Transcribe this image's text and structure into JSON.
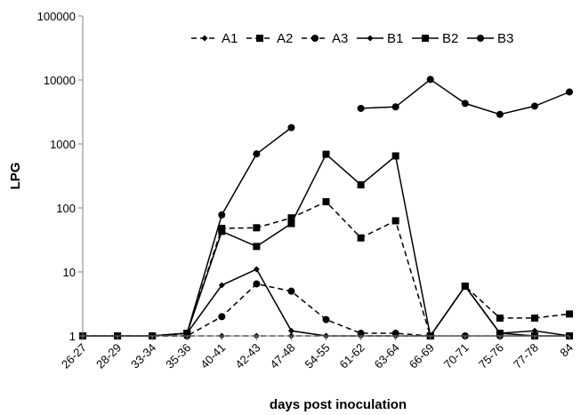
{
  "chart_data": {
    "type": "line",
    "title": "",
    "xlabel": "days post inoculation",
    "ylabel": "LPG",
    "yscale": "log",
    "ylim": [
      1,
      100000
    ],
    "y_ticks": [
      "1",
      "10",
      "100",
      "1000",
      "10000",
      "100000"
    ],
    "grid": false,
    "legend_position": "top",
    "categories": [
      "26-27",
      "28-29",
      "33-34",
      "35-36",
      "40-41",
      "42-43",
      "47-48",
      "54-55",
      "61-62",
      "63-64",
      "66-69",
      "70-71",
      "75-76",
      "77-78",
      "84"
    ],
    "series": [
      {
        "name": "A1",
        "line": "dashed",
        "marker": "diamond",
        "values": [
          1,
          1,
          1,
          1,
          1,
          1,
          1,
          1,
          1,
          1,
          1,
          1,
          1,
          1,
          1
        ]
      },
      {
        "name": "A2",
        "line": "dashed",
        "marker": "square",
        "values": [
          1,
          1,
          1,
          1.1,
          48,
          49,
          70,
          125,
          34,
          63,
          1,
          6,
          1.9,
          1.9,
          2.2
        ]
      },
      {
        "name": "A3",
        "line": "dashed",
        "marker": "circle",
        "values": [
          1,
          1,
          1,
          1,
          2,
          6.5,
          5,
          1.8,
          1.1,
          1.1,
          1,
          1,
          1,
          1,
          1
        ]
      },
      {
        "name": "B1",
        "line": "solid",
        "marker": "diamond",
        "values": [
          1,
          1,
          1,
          1.1,
          6.2,
          11,
          1.2,
          1,
          1,
          1,
          1,
          6,
          1.1,
          1.2,
          1
        ]
      },
      {
        "name": "B2",
        "line": "solid",
        "marker": "square",
        "values": [
          1,
          1,
          1,
          1.1,
          43,
          25,
          57,
          690,
          230,
          650,
          1,
          6,
          1.1,
          1,
          1
        ]
      },
      {
        "name": "B3",
        "line": "solid",
        "marker": "circle",
        "values": [
          1,
          1,
          1,
          1.1,
          78,
          700,
          1800,
          null,
          3600,
          3800,
          10200,
          4300,
          2900,
          3900,
          6500
        ]
      }
    ]
  }
}
